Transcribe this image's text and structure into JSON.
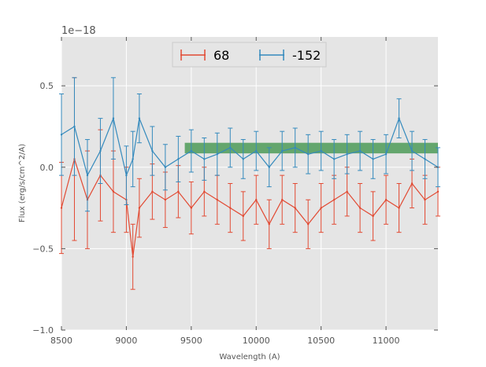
{
  "chart_data": {
    "type": "line",
    "title": "",
    "xlabel": "Wavelength (A)",
    "ylabel": "Flux (erg/s/cm^2/A)",
    "y_offset_label": "1e−18",
    "xlim": [
      8500,
      11400
    ],
    "ylim": [
      -1.0,
      0.8
    ],
    "x_ticks": [
      8500,
      9000,
      9500,
      10000,
      10500,
      11000
    ],
    "x_tick_labels": [
      "8500",
      "9000",
      "9500",
      "10000",
      "10500",
      "11000"
    ],
    "y_ticks": [
      -1.0,
      -0.5,
      0.0,
      0.5
    ],
    "y_tick_labels": [
      "−1.0",
      "−0.5",
      "0.0",
      "0.5"
    ],
    "grid": true,
    "legend_position": "top-center",
    "colors": {
      "background": "#e5e5e5",
      "grid": "#ffffff",
      "band": "#2e8b3a"
    },
    "band": {
      "x_start": 9450,
      "x_end": 11400,
      "y_low": 0.085,
      "y_high": 0.15,
      "opacity": 0.7
    },
    "series": [
      {
        "name": "68",
        "color": "#e24a33",
        "x": [
          8500,
          8600,
          8700,
          8800,
          8900,
          9000,
          9050,
          9100,
          9200,
          9300,
          9400,
          9500,
          9600,
          9700,
          9800,
          9900,
          10000,
          10100,
          10200,
          10300,
          10400,
          10500,
          10600,
          10700,
          10800,
          10900,
          11000,
          11100,
          11200,
          11300,
          11400
        ],
        "y": [
          -0.25,
          0.05,
          -0.2,
          -0.05,
          -0.15,
          -0.2,
          -0.55,
          -0.25,
          -0.15,
          -0.2,
          -0.15,
          -0.25,
          -0.15,
          -0.2,
          -0.25,
          -0.3,
          -0.2,
          -0.35,
          -0.2,
          -0.25,
          -0.35,
          -0.25,
          -0.2,
          -0.15,
          -0.25,
          -0.3,
          -0.2,
          -0.25,
          -0.1,
          -0.2,
          -0.15
        ],
        "yerr": [
          0.28,
          0.5,
          0.3,
          0.28,
          0.25,
          0.2,
          0.2,
          0.18,
          0.17,
          0.17,
          0.16,
          0.16,
          0.15,
          0.15,
          0.15,
          0.15,
          0.15,
          0.15,
          0.15,
          0.15,
          0.15,
          0.15,
          0.15,
          0.15,
          0.15,
          0.15,
          0.15,
          0.15,
          0.15,
          0.15,
          0.15
        ]
      },
      {
        "name": "-152",
        "color": "#348abd",
        "x": [
          8500,
          8600,
          8700,
          8800,
          8900,
          9000,
          9050,
          9100,
          9200,
          9300,
          9400,
          9500,
          9600,
          9700,
          9800,
          9900,
          10000,
          10100,
          10200,
          10300,
          10400,
          10500,
          10600,
          10700,
          10800,
          10900,
          11000,
          11100,
          11200,
          11300,
          11400
        ],
        "y": [
          0.2,
          0.25,
          -0.05,
          0.1,
          0.3,
          -0.05,
          0.05,
          0.3,
          0.1,
          0.0,
          0.05,
          0.1,
          0.05,
          0.08,
          0.12,
          0.05,
          0.1,
          0.0,
          0.1,
          0.12,
          0.08,
          0.1,
          0.05,
          0.08,
          0.1,
          0.05,
          0.08,
          0.3,
          0.1,
          0.05,
          0.0
        ],
        "yerr": [
          0.25,
          0.3,
          0.22,
          0.2,
          0.25,
          0.18,
          0.17,
          0.15,
          0.15,
          0.14,
          0.14,
          0.13,
          0.13,
          0.13,
          0.12,
          0.12,
          0.12,
          0.12,
          0.12,
          0.12,
          0.12,
          0.12,
          0.12,
          0.12,
          0.12,
          0.12,
          0.12,
          0.12,
          0.12,
          0.12,
          0.12
        ]
      }
    ]
  }
}
